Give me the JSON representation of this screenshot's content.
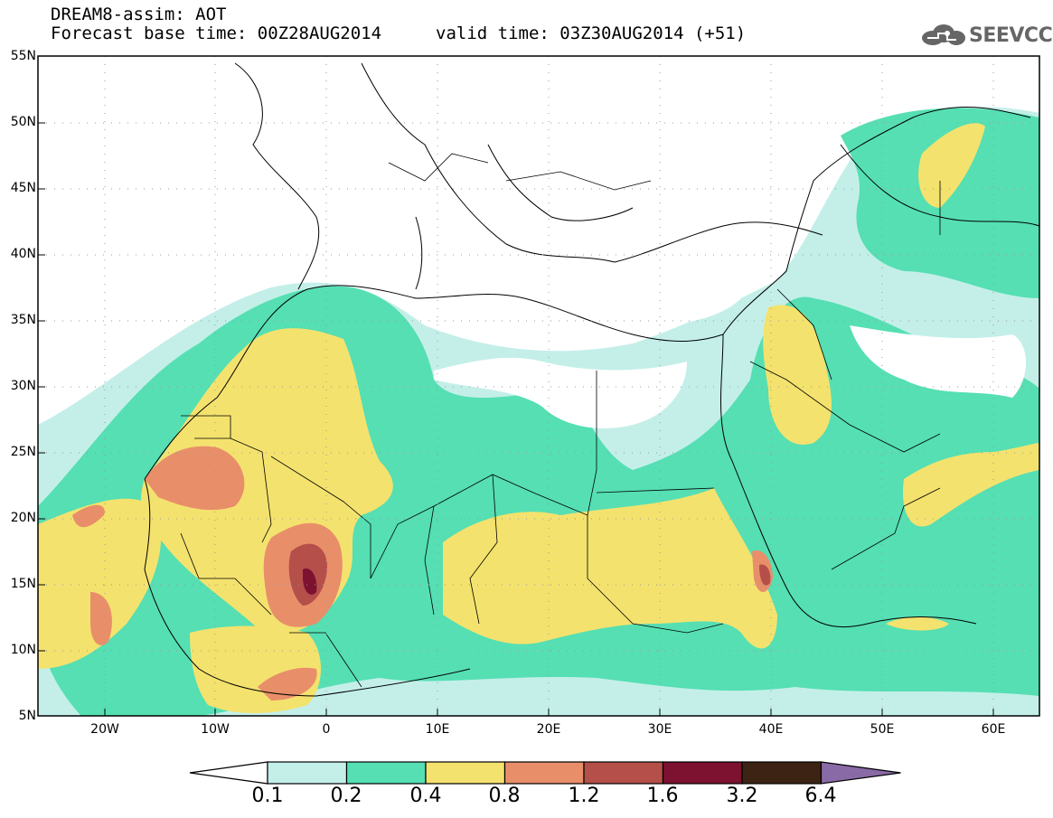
{
  "header": {
    "title": "DREAM8-assim: AOT",
    "base_time": "Forecast base time: 00Z28AUG2014",
    "valid_time": "valid time: 03Z30AUG2014 (+51)"
  },
  "logo": {
    "text": "SEEVCCC",
    "icon": "cloud-icon"
  },
  "map": {
    "lat_ticks": [
      "55N",
      "50N",
      "45N",
      "40N",
      "35N",
      "30N",
      "25N",
      "20N",
      "15N",
      "10N",
      "5N"
    ],
    "lon_ticks": [
      "20W",
      "10W",
      "0",
      "10E",
      "20E",
      "30E",
      "40E",
      "50E",
      "60E"
    ],
    "colors": {
      "c01": "#c4efe9",
      "c02": "#55dfb3",
      "c04": "#f4e26e",
      "c08": "#e88f6a",
      "c12": "#b44f4a",
      "c16": "#7c1130",
      "c32": "#3c2314",
      "c64": "#8a6aa6"
    }
  },
  "colorbar": {
    "labels": [
      "0.1",
      "0.2",
      "0.4",
      "0.8",
      "1.2",
      "1.6",
      "3.2",
      "6.4"
    ],
    "colors": [
      "#c4efe9",
      "#55dfb3",
      "#f4e26e",
      "#e88f6a",
      "#b44f4a",
      "#7c1130",
      "#3c2314"
    ],
    "over_color": "#8a6aa6",
    "under_color": "#ffffff"
  }
}
